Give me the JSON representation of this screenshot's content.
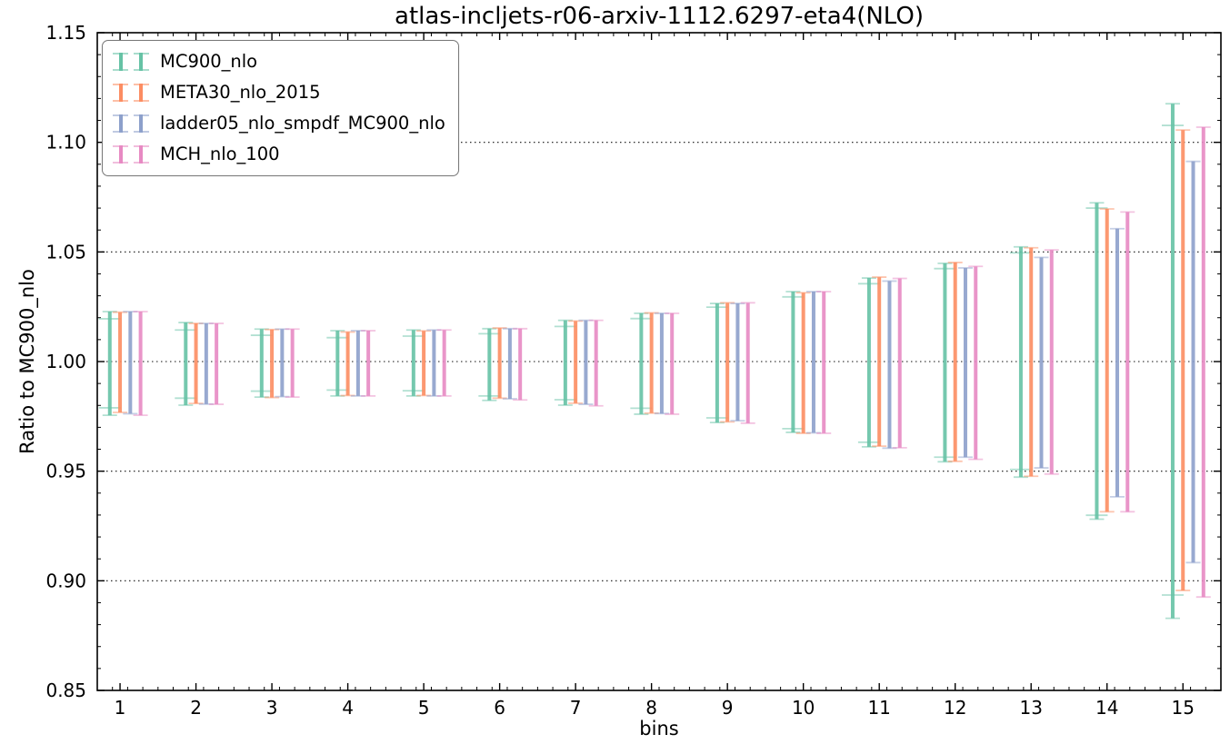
{
  "chart_data": {
    "type": "errorbar",
    "title": "atlas-incljets-r06-arxiv-1112.6297-eta4(NLO)",
    "xlabel": "bins",
    "ylabel": "Ratio to MC900_nlo",
    "xlim": [
      0.7,
      15.5
    ],
    "ylim": [
      0.85,
      1.15
    ],
    "xticks": [
      1,
      2,
      3,
      4,
      5,
      6,
      7,
      8,
      9,
      10,
      11,
      12,
      13,
      14,
      15
    ],
    "xtick_labels": [
      "1",
      "2",
      "3",
      "4",
      "5",
      "6",
      "7",
      "8",
      "9",
      "10",
      "11",
      "12",
      "13",
      "14",
      "15"
    ],
    "yticks": [
      0.85,
      0.9,
      0.95,
      1.0,
      1.05,
      1.1,
      1.15
    ],
    "ytick_labels": [
      "0.85",
      "0.90",
      "0.95",
      "1.00",
      "1.05",
      "1.10",
      "1.15"
    ],
    "minor_x_step": 0.2,
    "minor_y_step": 0.01,
    "grid": "horizontal dotted lines at interior major yticks",
    "legend_position": "upper-left",
    "series": [
      {
        "name": "MC900_nlo",
        "color": "#66c2a5",
        "offset": -0.135,
        "hi": [
          1.0228,
          1.0178,
          1.0148,
          1.0141,
          1.0144,
          1.015,
          1.0188,
          1.022,
          1.0265,
          1.0319,
          1.0381,
          1.0448,
          1.0523,
          1.0724,
          1.1176
        ],
        "lo": [
          0.9755,
          0.9801,
          0.9838,
          0.9843,
          0.9843,
          0.9823,
          0.9801,
          0.976,
          0.9722,
          0.9677,
          0.9611,
          0.9543,
          0.9473,
          0.9281,
          0.8829
        ],
        "inner_hi": [
          1.0195,
          1.0144,
          1.012,
          1.0109,
          1.0116,
          1.0127,
          1.016,
          1.0196,
          1.0248,
          1.0295,
          1.0355,
          1.0424,
          1.0496,
          1.07,
          1.1077
        ],
        "inner_lo": [
          0.9789,
          0.9833,
          0.9865,
          0.987,
          0.9867,
          0.9843,
          0.9826,
          0.9787,
          0.9743,
          0.9694,
          0.9632,
          0.9564,
          0.9508,
          0.9299,
          0.8935
        ]
      },
      {
        "name": "META30_nlo_2015",
        "color": "#fc8d62",
        "offset": 0.0,
        "hi": [
          1.0225,
          1.0174,
          1.0146,
          1.0135,
          1.014,
          1.0153,
          1.0185,
          1.0222,
          1.0268,
          1.0314,
          1.0385,
          1.0452,
          1.0519,
          1.0696,
          1.1056
        ],
        "lo": [
          0.9768,
          0.9809,
          0.9836,
          0.9845,
          0.9845,
          0.9833,
          0.981,
          0.9765,
          0.9725,
          0.9673,
          0.9614,
          0.9545,
          0.9477,
          0.9315,
          0.8956
        ]
      },
      {
        "name": "ladder05_nlo_smpdf_MC900_nlo",
        "color": "#8da0cb",
        "offset": 0.135,
        "hi": [
          1.0228,
          1.0174,
          1.0148,
          1.0141,
          1.0144,
          1.015,
          1.0188,
          1.022,
          1.0265,
          1.0319,
          1.0367,
          1.0427,
          1.0475,
          1.0606,
          1.0913
        ],
        "lo": [
          0.9762,
          0.9806,
          0.984,
          0.9843,
          0.9843,
          0.983,
          0.9805,
          0.9763,
          0.973,
          0.9675,
          0.9605,
          0.9564,
          0.9515,
          0.9383,
          0.9083
        ]
      },
      {
        "name": "MCH_nlo_100",
        "color": "#e78ac3",
        "offset": 0.27,
        "hi": [
          1.0228,
          1.0174,
          1.0148,
          1.0141,
          1.0144,
          1.015,
          1.0188,
          1.022,
          1.0268,
          1.0319,
          1.0379,
          1.0434,
          1.0509,
          1.0682,
          1.1069
        ],
        "lo": [
          0.9755,
          0.9805,
          0.9838,
          0.9843,
          0.9843,
          0.9825,
          0.9798,
          0.976,
          0.9719,
          0.9673,
          0.9607,
          0.9554,
          0.9487,
          0.9315,
          0.8926
        ]
      }
    ]
  }
}
